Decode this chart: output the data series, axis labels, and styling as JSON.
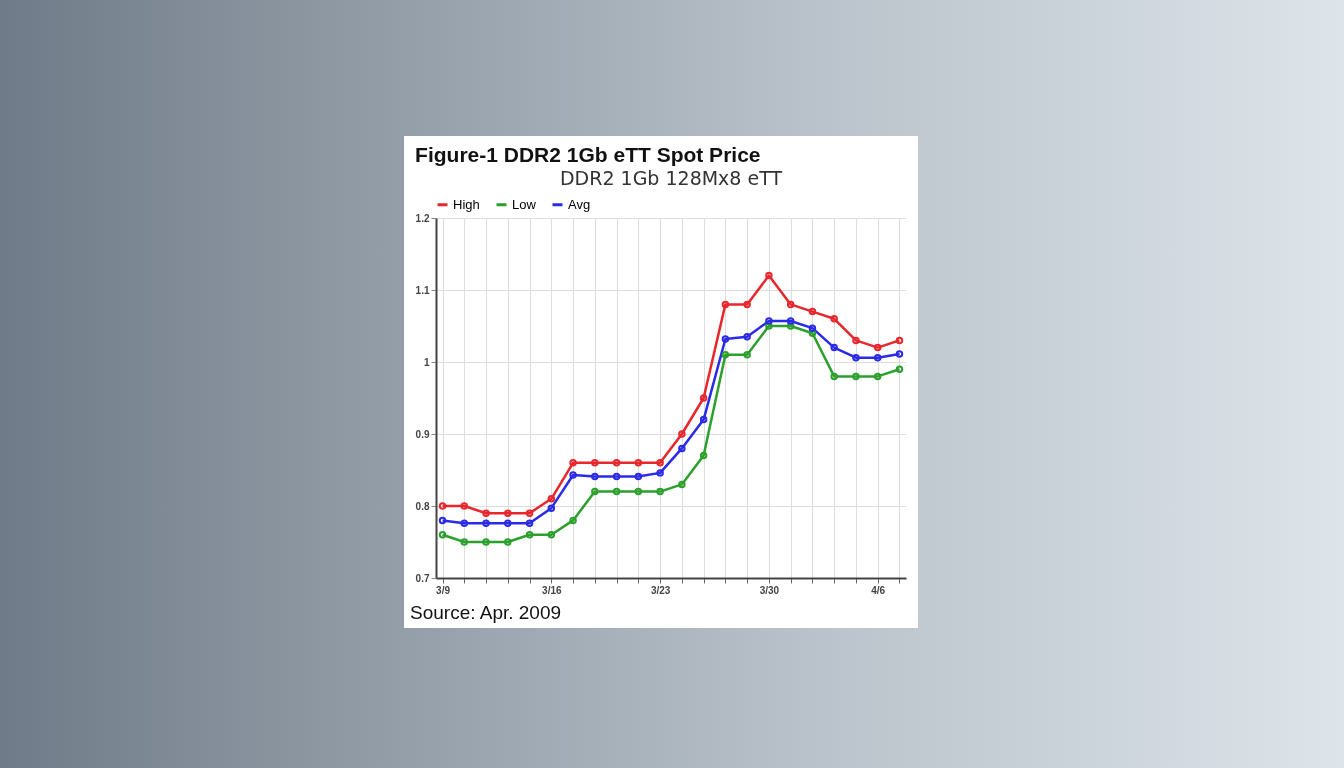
{
  "chart_data": {
    "type": "line",
    "title": "Figure-1 DDR2 1Gb eTT Spot Price",
    "subtitle": "DDR2 1Gb 128Mx8 eTT",
    "categories": [
      "3/9",
      null,
      null,
      null,
      null,
      "3/16",
      null,
      null,
      null,
      null,
      "3/23",
      null,
      null,
      null,
      null,
      "3/30",
      null,
      null,
      null,
      null,
      "4/6",
      null
    ],
    "series": [
      {
        "name": "High",
        "color": "#e8262c",
        "values": [
          0.8,
          0.8,
          0.79,
          0.79,
          0.79,
          0.81,
          0.86,
          0.86,
          0.86,
          0.86,
          0.86,
          0.9,
          0.95,
          1.08,
          1.08,
          1.12,
          1.08,
          1.07,
          1.06,
          1.03,
          1.02,
          1.03
        ]
      },
      {
        "name": "Low",
        "color": "#2ca02c",
        "values": [
          0.76,
          0.75,
          0.75,
          0.75,
          0.76,
          0.76,
          0.78,
          0.82,
          0.82,
          0.82,
          0.82,
          0.83,
          0.87,
          1.01,
          1.01,
          1.05,
          1.05,
          1.04,
          0.98,
          0.98,
          0.98,
          0.99
        ]
      },
      {
        "name": "Avg",
        "color": "#2a2ae8",
        "values": [
          0.78,
          0.776,
          0.776,
          0.776,
          0.776,
          0.797,
          0.843,
          0.841,
          0.841,
          0.841,
          0.846,
          0.88,
          0.92,
          1.032,
          1.035,
          1.057,
          1.057,
          1.047,
          1.02,
          1.006,
          1.006,
          1.011
        ]
      }
    ],
    "ylim": [
      0.7,
      1.2
    ],
    "yticks": [
      0.7,
      0.8,
      0.9,
      1,
      1.1,
      1.2
    ],
    "grid": true,
    "legend": "top left",
    "marker": "circle",
    "line_style": "solid",
    "annotations": [
      "Source: Apr. 2009"
    ]
  }
}
